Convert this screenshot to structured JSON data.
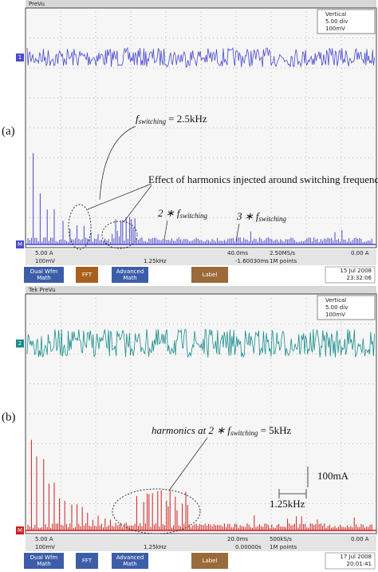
{
  "panels": [
    {
      "label": "(a)",
      "top_bar": "PreVu",
      "legend": {
        "title": "Vertical",
        "rows": [
          "5.00 div",
          "100mV"
        ]
      },
      "markers": {
        "channel": "1",
        "math": "M"
      },
      "annotations": {
        "fundamental": {
          "f": "f",
          "sub": "switching",
          "rest": "= 2.5kHz"
        },
        "effect": "Effect of harmonics injected around switching frequency",
        "second": {
          "pre": "2 ∗ f",
          "sub": "switching"
        },
        "third": {
          "pre": "3 ∗ f",
          "sub": "switching"
        }
      },
      "status": {
        "ch1": "5.00 A",
        "math": "100mV",
        "freq": "1.25kHz",
        "scale": "40.0ms",
        "position": "-1.60030ms",
        "rate": "2.50MS/s",
        "points": "1M points",
        "trigger": "0.00 A"
      },
      "buttons": [
        [
          "Dual Wfm",
          "Math"
        ],
        [
          "FFT"
        ],
        [
          "Advanced",
          "Math"
        ],
        [
          "Label"
        ]
      ],
      "date": "15 Jul 2008",
      "time": "23:32:06"
    },
    {
      "label": "(b)",
      "top_bar": "Tek PreVu",
      "legend": {
        "title": "Vertical",
        "rows": [
          "5.00 div",
          "100mV"
        ]
      },
      "markers": {
        "channel": "2",
        "math": "M"
      },
      "annotations": {
        "harmonics": {
          "pre": "harmonics at 2 ∗ f",
          "sub": "switching",
          "rest": "= 5kHz"
        },
        "amp_scale": "100mA",
        "freq_scale": "1.25kHz"
      },
      "status": {
        "ch1": "5.00 A",
        "math": "100mV",
        "freq": "1.25kHz",
        "scale": "20.0ms",
        "position": "0.00000s",
        "rate": "500kS/s",
        "points": "1M points",
        "trigger": "0.00 A"
      },
      "buttons": [
        [
          "Dual Wfm",
          "Math"
        ],
        [
          "FFT"
        ],
        [
          "Advanced",
          "Math"
        ],
        [
          "Label"
        ]
      ],
      "date": "17 Jul 2008",
      "time": "20:01:41"
    }
  ]
}
